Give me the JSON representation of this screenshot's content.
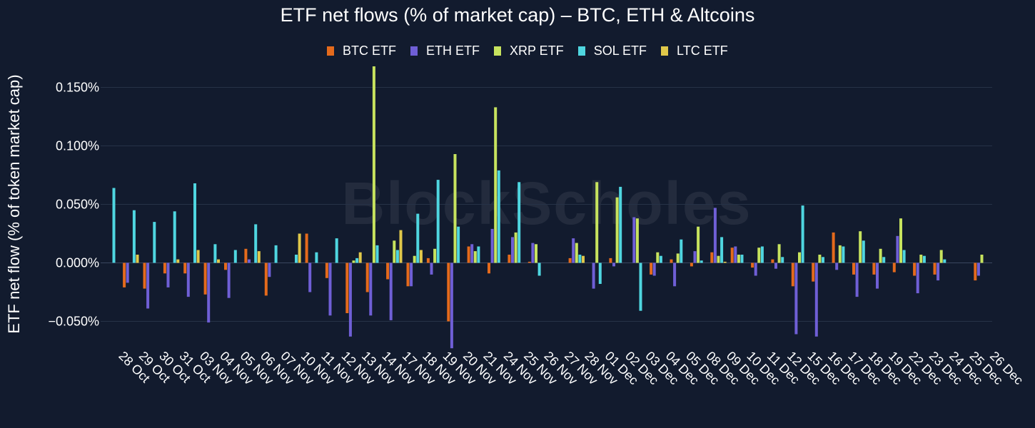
{
  "watermark": "BlockScholes",
  "colors": {
    "background": "#121b2e",
    "BTC ETF": "#e46a1c",
    "ETH ETF": "#6f5fd6",
    "XRP ETF": "#c7e35e",
    "SOL ETF": "#4fd6e0",
    "LTC ETF": "#e0c84a"
  },
  "chart_data": {
    "type": "bar",
    "title": "ETF net flows (% of market cap) – BTC, ETH & Altcoins",
    "xlabel": "",
    "ylabel": "ETF net flow (% of token market cap)",
    "ylim": [
      -0.068,
      0.168
    ],
    "yticks": [
      -0.05,
      0,
      0.05,
      0.1,
      0.15
    ],
    "ytick_labels": [
      "−0.050%",
      "0.000%",
      "0.050%",
      "0.100%",
      "0.150%"
    ],
    "grid": true,
    "legend_position": "top-center",
    "categories": [
      "28 Oct",
      "29 Oct",
      "30 Oct",
      "31 Oct",
      "03 Nov",
      "04 Nov",
      "05 Nov",
      "06 Nov",
      "07 Nov",
      "10 Nov",
      "11 Nov",
      "12 Nov",
      "13 Nov",
      "14 Nov",
      "17 Nov",
      "18 Nov",
      "19 Nov",
      "20 Nov",
      "21 Nov",
      "24 Nov",
      "25 Nov",
      "26 Nov",
      "27 Nov",
      "28 Nov",
      "01 Dec",
      "02 Dec",
      "03 Dec",
      "04 Dec",
      "05 Dec",
      "08 Dec",
      "09 Dec",
      "10 Dec",
      "11 Dec",
      "12 Dec",
      "15 Dec",
      "16 Dec",
      "17 Dec",
      "18 Dec",
      "19 Dec",
      "22 Dec",
      "23 Dec",
      "24 Dec",
      "25 Dec",
      "26 Dec"
    ],
    "series": [
      {
        "name": "BTC ETF",
        "values": [
          0,
          -0.021,
          -0.022,
          -0.009,
          -0.009,
          -0.027,
          -0.006,
          0.012,
          -0.028,
          0,
          0.025,
          -0.013,
          -0.043,
          -0.025,
          -0.014,
          -0.02,
          0.004,
          -0.05,
          0.014,
          -0.009,
          0.007,
          0.001,
          0,
          0.004,
          0,
          0.004,
          0,
          -0.01,
          0.003,
          -0.003,
          0.009,
          0.013,
          -0.004,
          0.003,
          -0.02,
          -0.016,
          0.026,
          -0.01,
          -0.01,
          -0.008,
          -0.011,
          -0.01,
          0,
          -0.015
        ]
      },
      {
        "name": "ETH ETF",
        "values": [
          0,
          -0.017,
          -0.039,
          -0.021,
          -0.029,
          -0.051,
          -0.03,
          0.003,
          -0.012,
          0,
          -0.025,
          -0.045,
          -0.063,
          -0.045,
          -0.049,
          -0.02,
          -0.01,
          -0.073,
          0.016,
          0.029,
          0.022,
          0.017,
          0,
          0.021,
          -0.022,
          -0.003,
          0.039,
          -0.011,
          -0.02,
          0.01,
          0.047,
          0.014,
          -0.011,
          -0.005,
          -0.061,
          -0.063,
          -0.006,
          -0.029,
          -0.022,
          0.023,
          -0.026,
          -0.015,
          0,
          -0.011
        ]
      },
      {
        "name": "XRP ETF",
        "values": [
          0,
          0,
          0,
          0,
          0,
          0,
          0,
          0,
          0,
          0,
          0,
          0,
          0.002,
          0.168,
          0.019,
          0.006,
          0.012,
          0.093,
          0.01,
          0.133,
          0.026,
          0.016,
          0,
          0.017,
          0.069,
          0.056,
          0.038,
          0.009,
          0.008,
          0.031,
          0.006,
          0.007,
          0.013,
          0.016,
          0.009,
          0.007,
          0.015,
          0.027,
          0.012,
          0.038,
          0.007,
          0.011,
          0,
          0.007
        ]
      },
      {
        "name": "SOL ETF",
        "values": [
          0.064,
          0.045,
          0.035,
          0.044,
          0.068,
          0.016,
          0.011,
          0.033,
          0.015,
          0.007,
          0.009,
          0.021,
          0.004,
          0.015,
          0.011,
          0.042,
          0.071,
          0.031,
          0.014,
          0.079,
          0.069,
          -0.011,
          0,
          0.007,
          -0.018,
          0.065,
          -0.041,
          0.006,
          0.02,
          0.002,
          0.022,
          0.007,
          0.014,
          0.005,
          0.049,
          0.005,
          0.014,
          0.019,
          0.005,
          0.011,
          0.006,
          0.003,
          0,
          0
        ]
      },
      {
        "name": "LTC ETF",
        "values": [
          0,
          0.007,
          0,
          0.003,
          0.011,
          0.003,
          0,
          0.01,
          0,
          0.025,
          0,
          0,
          0.009,
          0,
          0.028,
          0.011,
          0,
          0,
          0,
          0,
          0,
          0,
          0,
          0.006,
          0,
          0,
          0,
          0,
          0,
          0,
          0.001,
          0,
          0,
          0,
          0,
          0,
          0,
          0,
          0,
          0,
          0,
          0,
          0,
          0
        ]
      }
    ]
  }
}
